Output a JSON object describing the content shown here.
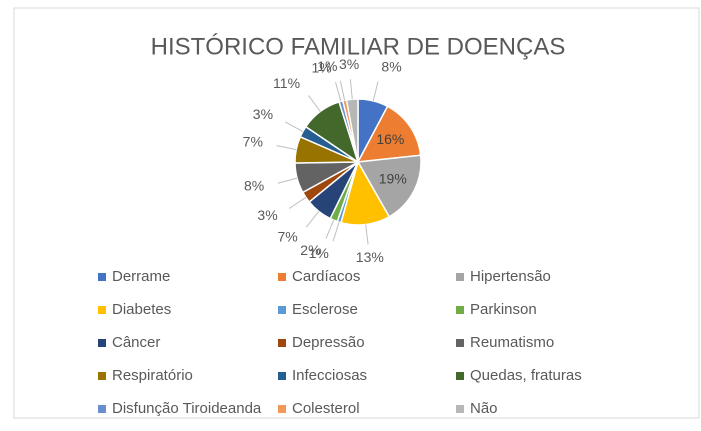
{
  "chart_data": {
    "type": "pie",
    "title": "HISTÓRICO FAMILIAR DE DOENÇAS",
    "categories": [
      "Derrame",
      "Cardíacos",
      "Hipertensão",
      "Diabetes",
      "Esclerose",
      "Parkinson",
      "Câncer",
      "Depressão",
      "Reumatismo",
      "Respiratório",
      "Infecciosas",
      "Quedas, fraturas",
      "Disfunção Tiroideanda",
      "Colesterol",
      "Não"
    ],
    "values": [
      8,
      16,
      19,
      13,
      1,
      2,
      7,
      3,
      8,
      7,
      3,
      11,
      1,
      1,
      3
    ],
    "value_labels": [
      "8%",
      "16%",
      "19%",
      "13%",
      "1%",
      "2%",
      "7%",
      "3%",
      "8%",
      "7%",
      "3%",
      "11%",
      "1%",
      "1%",
      "3%"
    ],
    "colors": [
      "#4472c4",
      "#ed7d31",
      "#a5a5a5",
      "#ffc000",
      "#5b9bd5",
      "#70ad47",
      "#264478",
      "#9e480e",
      "#636363",
      "#997300",
      "#255e91",
      "#43682b",
      "#698ed0",
      "#f1975a",
      "#b7b7b7"
    ],
    "legend": "bottom"
  }
}
